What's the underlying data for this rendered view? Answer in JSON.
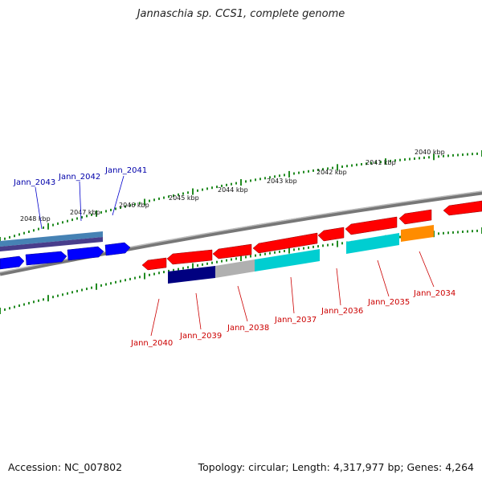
{
  "header": {
    "title": "Jannaschia sp. CCS1, complete genome"
  },
  "footer": {
    "accession": "Accession: NC_007802",
    "summary": "Topology: circular; Length: 4,317,977 bp; Genes: 4,264"
  },
  "colors": {
    "backbone": "#808080",
    "tick": "#228B22",
    "forward_gene": "#0000ff",
    "reverse_gene": "#ff0000",
    "forward_label": "#0000aa",
    "reverse_label": "#cc0000"
  },
  "ticks": {
    "outer_labels": [
      "2048 kbp",
      "2047 kbp",
      "2046 kbp",
      "2045 kbp",
      "2044 kbp",
      "2043 kbp",
      "2042 kbp",
      "2041 kbp",
      "2040 kbp"
    ]
  },
  "forward_labels": [
    "Jann_2043",
    "Jann_2042",
    "Jann_2041"
  ],
  "reverse_labels": [
    "Jann_2040",
    "Jann_2039",
    "Jann_2038",
    "Jann_2037",
    "Jann_2036",
    "Jann_2035",
    "Jann_2034"
  ]
}
